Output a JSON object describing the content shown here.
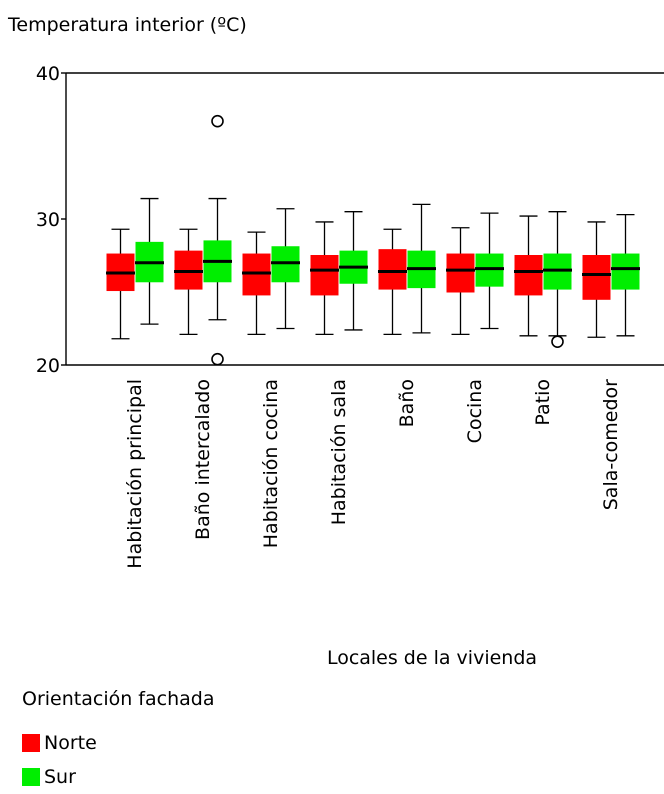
{
  "chart_data": {
    "type": "boxplot",
    "title": "Temperatura interior (ºC)",
    "xlabel": "Locales de la vivienda",
    "ylabel": "",
    "ylim": [
      20,
      40
    ],
    "yticks": [
      20,
      30,
      40
    ],
    "categories": [
      "Habitación principal",
      "Baño intercalado",
      "Habitación cocina",
      "Habitación sala",
      "Baño",
      "Cocina",
      "Patio",
      "Sala-comedor"
    ],
    "legend": {
      "title": "Orientación fachada",
      "placement": "bottom-left"
    },
    "series": [
      {
        "name": "Norte",
        "color": "#ff0000",
        "boxes": [
          {
            "whisker_low": 21.8,
            "q1": 25.1,
            "median": 26.3,
            "q3": 27.6,
            "whisker_high": 29.3,
            "outliers": []
          },
          {
            "whisker_low": 22.1,
            "q1": 25.2,
            "median": 26.4,
            "q3": 27.8,
            "whisker_high": 29.3,
            "outliers": []
          },
          {
            "whisker_low": 22.1,
            "q1": 24.8,
            "median": 26.3,
            "q3": 27.6,
            "whisker_high": 29.1,
            "outliers": []
          },
          {
            "whisker_low": 22.1,
            "q1": 24.8,
            "median": 26.5,
            "q3": 27.5,
            "whisker_high": 29.8,
            "outliers": []
          },
          {
            "whisker_low": 22.1,
            "q1": 25.2,
            "median": 26.4,
            "q3": 27.9,
            "whisker_high": 29.3,
            "outliers": []
          },
          {
            "whisker_low": 22.1,
            "q1": 25.0,
            "median": 26.5,
            "q3": 27.6,
            "whisker_high": 29.4,
            "outliers": []
          },
          {
            "whisker_low": 22.0,
            "q1": 24.8,
            "median": 26.4,
            "q3": 27.5,
            "whisker_high": 30.2,
            "outliers": []
          },
          {
            "whisker_low": 21.9,
            "q1": 24.5,
            "median": 26.2,
            "q3": 27.5,
            "whisker_high": 29.8,
            "outliers": []
          }
        ]
      },
      {
        "name": "Sur",
        "color": "#00ee00",
        "boxes": [
          {
            "whisker_low": 22.8,
            "q1": 25.7,
            "median": 27.0,
            "q3": 28.4,
            "whisker_high": 31.4,
            "outliers": []
          },
          {
            "whisker_low": 23.1,
            "q1": 25.7,
            "median": 27.1,
            "q3": 28.5,
            "whisker_high": 31.4,
            "outliers": [
              36.7,
              20.4
            ]
          },
          {
            "whisker_low": 22.5,
            "q1": 25.7,
            "median": 27.0,
            "q3": 28.1,
            "whisker_high": 30.7,
            "outliers": []
          },
          {
            "whisker_low": 22.4,
            "q1": 25.6,
            "median": 26.7,
            "q3": 27.8,
            "whisker_high": 30.5,
            "outliers": []
          },
          {
            "whisker_low": 22.2,
            "q1": 25.3,
            "median": 26.6,
            "q3": 27.8,
            "whisker_high": 31.0,
            "outliers": []
          },
          {
            "whisker_low": 22.5,
            "q1": 25.4,
            "median": 26.6,
            "q3": 27.6,
            "whisker_high": 30.4,
            "outliers": []
          },
          {
            "whisker_low": 22.0,
            "q1": 25.2,
            "median": 26.5,
            "q3": 27.6,
            "whisker_high": 30.5,
            "outliers": [
              21.6
            ]
          },
          {
            "whisker_low": 22.0,
            "q1": 25.2,
            "median": 26.6,
            "q3": 27.6,
            "whisker_high": 30.3,
            "outliers": []
          }
        ]
      }
    ]
  }
}
